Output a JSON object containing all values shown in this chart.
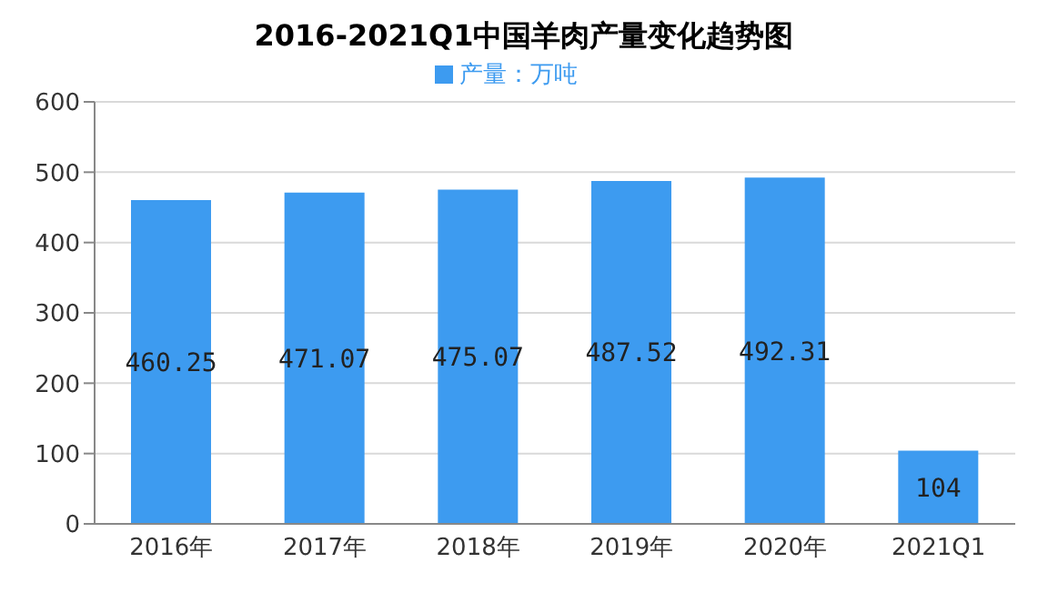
{
  "chart_data": {
    "type": "bar",
    "title": "2016-2021Q1中国羊肉产量变化趋势图",
    "categories": [
      "2016年",
      "2017年",
      "2018年",
      "2019年",
      "2020年",
      "2021Q1"
    ],
    "series": [
      {
        "name": "产量：万吨",
        "color": "#3d9bf0",
        "values": [
          460.25,
          471.07,
          475.07,
          487.52,
          492.31,
          104
        ]
      }
    ],
    "ylim": [
      0,
      600
    ],
    "yticks": [
      0,
      100,
      200,
      300,
      400,
      500,
      600
    ],
    "grid": "y",
    "legend": "top",
    "data_labels": true
  }
}
